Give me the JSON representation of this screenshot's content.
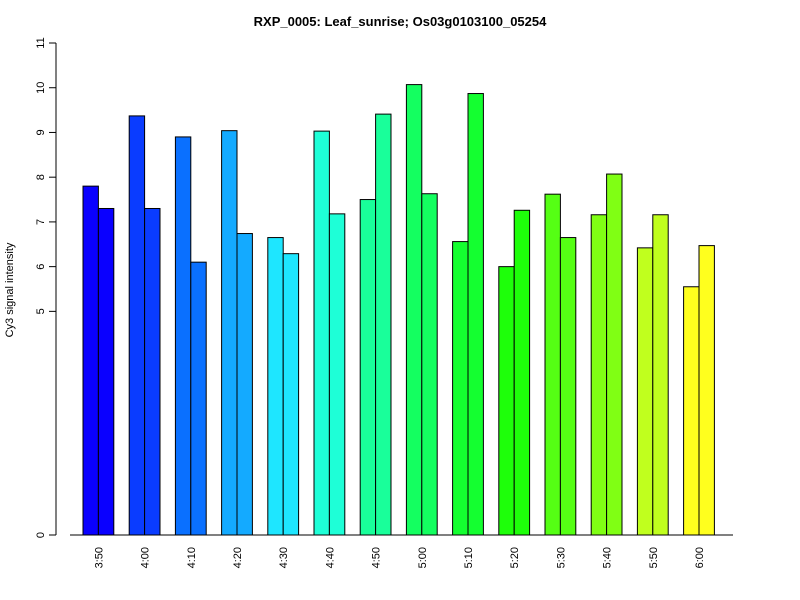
{
  "chart_data": {
    "type": "bar",
    "title": "RXP_0005: Leaf_sunrise; Os03g0103100_05254",
    "xlabel": "",
    "ylabel": "Cy3 signal intensity",
    "ylim": [
      0,
      11
    ],
    "y_ticks": [
      "0",
      "5",
      "6",
      "7",
      "8",
      "9",
      "10",
      "11"
    ],
    "y_tick_values": [
      0,
      5,
      6,
      7,
      8,
      9,
      10,
      11
    ],
    "grid": false,
    "bars_per_group": 2,
    "categories": [
      "3:50",
      "4:00",
      "4:10",
      "4:20",
      "4:30",
      "4:40",
      "4:50",
      "5:00",
      "5:10",
      "5:20",
      "5:30",
      "5:40",
      "5:50",
      "6:00"
    ],
    "group_colors": [
      "#0a00ff",
      "#0a3cff",
      "#0a70ff",
      "#14aaff",
      "#1ee6ff",
      "#1effd7",
      "#19ff9a",
      "#14ff60",
      "#14ff30",
      "#1eff0a",
      "#55ff14",
      "#80ff14",
      "#c0ff1e",
      "#ffff1e"
    ],
    "series": [
      {
        "values": [
          7.8,
          9.37,
          8.9,
          9.04,
          6.65,
          9.03,
          7.5,
          10.07,
          6.56,
          6.0,
          7.62,
          7.16,
          6.42,
          5.55
        ]
      },
      {
        "values": [
          7.3,
          7.3,
          6.1,
          6.74,
          6.29,
          7.18,
          9.41,
          7.63,
          9.87,
          7.26,
          6.65,
          8.07,
          7.16,
          6.47
        ]
      }
    ]
  }
}
